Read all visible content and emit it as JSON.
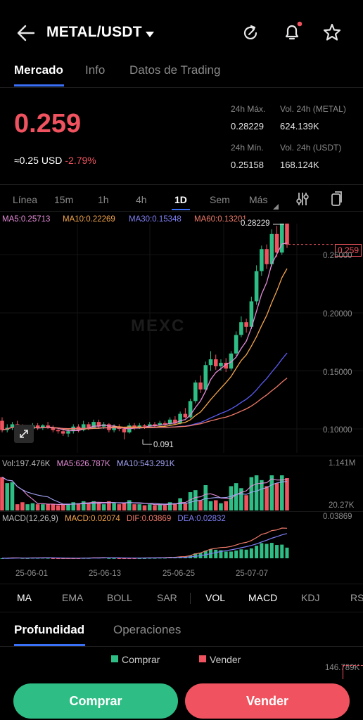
{
  "header": {
    "pair": "METAL/USDT"
  },
  "tabs": [
    "Mercado",
    "Info",
    "Datos de Trading"
  ],
  "price": {
    "last": "0.259",
    "usd": "≈0.25 USD",
    "change": "-2.79%"
  },
  "stats": {
    "high_label": "24h Máx.",
    "high": "0.28229",
    "low_label": "24h Mín.",
    "low": "0.25158",
    "vol_base_label": "Vol. 24h (METAL)",
    "vol_base": "624.139K",
    "vol_quote_label": "Vol. 24h (USDT)",
    "vol_quote": "168.124K"
  },
  "intervals": [
    "Línea",
    "15m",
    "1h",
    "4h",
    "1D",
    "Sem",
    "Más"
  ],
  "ma": {
    "ma5": "MA5:0.25713",
    "ma10": "MA10:0.22269",
    "ma30": "MA30:0.15348",
    "ma60": "MA60:0.13201"
  },
  "colors": {
    "up": "#2ebd85",
    "down": "#f0535f",
    "ma5": "#e58bd8",
    "ma10": "#f5a54a",
    "ma30": "#5b5bf5",
    "ma60": "#f07a6a",
    "accent": "#3a6ff7"
  },
  "chart": {
    "watermark": "MEXC",
    "high_marker": "0.28229",
    "low_marker": "0.091",
    "price_tag": "0.259",
    "y_labels": [
      "0.20000",
      "0.15000",
      "0.10000"
    ],
    "y_partial": "0.25000",
    "volume_label": "Vol:197.476K",
    "vol_ma5": "MA5:626.787K",
    "vol_ma10": "MA10:543.291K",
    "vol_max": "1.141M",
    "vol_min": "20.27K",
    "macd_label": "MACD(12,26,9)",
    "macd": "MACD:0.02074",
    "dif": "DIF:0.03869",
    "dea": "DEA:0.02832",
    "macd_max": "0.03869",
    "dates": [
      "25-06-01",
      "25-06-13",
      "25-06-25",
      "25-07-07"
    ]
  },
  "chart_data": {
    "type": "candlestick",
    "x_ticks": [
      "25-06-01",
      "25-06-13",
      "25-06-25",
      "25-07-07"
    ],
    "y_ticks": [
      0.2,
      0.15,
      0.1
    ],
    "candles": [
      {
        "o": 0.107,
        "c": 0.099,
        "h": 0.11,
        "l": 0.097
      },
      {
        "o": 0.099,
        "c": 0.101,
        "h": 0.104,
        "l": 0.097
      },
      {
        "o": 0.101,
        "c": 0.104,
        "h": 0.106,
        "l": 0.099
      },
      {
        "o": 0.104,
        "c": 0.102,
        "h": 0.107,
        "l": 0.1
      },
      {
        "o": 0.102,
        "c": 0.098,
        "h": 0.104,
        "l": 0.096
      },
      {
        "o": 0.098,
        "c": 0.1,
        "h": 0.103,
        "l": 0.097
      },
      {
        "o": 0.1,
        "c": 0.103,
        "h": 0.105,
        "l": 0.099
      },
      {
        "o": 0.103,
        "c": 0.101,
        "h": 0.105,
        "l": 0.099
      },
      {
        "o": 0.101,
        "c": 0.103,
        "h": 0.104,
        "l": 0.099
      },
      {
        "o": 0.103,
        "c": 0.101,
        "h": 0.106,
        "l": 0.1
      },
      {
        "o": 0.101,
        "c": 0.099,
        "h": 0.103,
        "l": 0.097
      },
      {
        "o": 0.099,
        "c": 0.098,
        "h": 0.101,
        "l": 0.096
      },
      {
        "o": 0.098,
        "c": 0.096,
        "h": 0.1,
        "l": 0.094
      },
      {
        "o": 0.096,
        "c": 0.098,
        "h": 0.1,
        "l": 0.093
      },
      {
        "o": 0.098,
        "c": 0.102,
        "h": 0.104,
        "l": 0.096
      },
      {
        "o": 0.102,
        "c": 0.099,
        "h": 0.104,
        "l": 0.097
      },
      {
        "o": 0.099,
        "c": 0.104,
        "h": 0.107,
        "l": 0.098
      },
      {
        "o": 0.104,
        "c": 0.101,
        "h": 0.106,
        "l": 0.099
      },
      {
        "o": 0.101,
        "c": 0.106,
        "h": 0.108,
        "l": 0.1
      },
      {
        "o": 0.106,
        "c": 0.102,
        "h": 0.108,
        "l": 0.1
      },
      {
        "o": 0.102,
        "c": 0.104,
        "h": 0.106,
        "l": 0.1
      },
      {
        "o": 0.104,
        "c": 0.099,
        "h": 0.105,
        "l": 0.097
      },
      {
        "o": 0.099,
        "c": 0.102,
        "h": 0.104,
        "l": 0.097
      },
      {
        "o": 0.102,
        "c": 0.1,
        "h": 0.104,
        "l": 0.098
      },
      {
        "o": 0.1,
        "c": 0.097,
        "h": 0.102,
        "l": 0.091
      },
      {
        "o": 0.097,
        "c": 0.103,
        "h": 0.105,
        "l": 0.096
      },
      {
        "o": 0.103,
        "c": 0.101,
        "h": 0.105,
        "l": 0.099
      },
      {
        "o": 0.101,
        "c": 0.103,
        "h": 0.105,
        "l": 0.1
      },
      {
        "o": 0.103,
        "c": 0.102,
        "h": 0.104,
        "l": 0.1
      },
      {
        "o": 0.102,
        "c": 0.104,
        "h": 0.106,
        "l": 0.101
      },
      {
        "o": 0.104,
        "c": 0.103,
        "h": 0.106,
        "l": 0.101
      },
      {
        "o": 0.103,
        "c": 0.105,
        "h": 0.107,
        "l": 0.102
      },
      {
        "o": 0.105,
        "c": 0.104,
        "h": 0.107,
        "l": 0.102
      },
      {
        "o": 0.104,
        "c": 0.108,
        "h": 0.11,
        "l": 0.103
      },
      {
        "o": 0.108,
        "c": 0.105,
        "h": 0.111,
        "l": 0.104
      },
      {
        "o": 0.105,
        "c": 0.113,
        "h": 0.115,
        "l": 0.104
      },
      {
        "o": 0.113,
        "c": 0.11,
        "h": 0.118,
        "l": 0.109
      },
      {
        "o": 0.11,
        "c": 0.124,
        "h": 0.126,
        "l": 0.109
      },
      {
        "o": 0.124,
        "c": 0.14,
        "h": 0.142,
        "l": 0.122
      },
      {
        "o": 0.14,
        "c": 0.134,
        "h": 0.146,
        "l": 0.131
      },
      {
        "o": 0.134,
        "c": 0.155,
        "h": 0.158,
        "l": 0.132
      },
      {
        "o": 0.155,
        "c": 0.16,
        "h": 0.167,
        "l": 0.15
      },
      {
        "o": 0.16,
        "c": 0.154,
        "h": 0.164,
        "l": 0.151
      },
      {
        "o": 0.154,
        "c": 0.157,
        "h": 0.16,
        "l": 0.15
      },
      {
        "o": 0.157,
        "c": 0.152,
        "h": 0.161,
        "l": 0.149
      },
      {
        "o": 0.152,
        "c": 0.165,
        "h": 0.167,
        "l": 0.15
      },
      {
        "o": 0.165,
        "c": 0.181,
        "h": 0.184,
        "l": 0.163
      },
      {
        "o": 0.181,
        "c": 0.192,
        "h": 0.197,
        "l": 0.179
      },
      {
        "o": 0.192,
        "c": 0.188,
        "h": 0.195,
        "l": 0.183
      },
      {
        "o": 0.188,
        "c": 0.21,
        "h": 0.214,
        "l": 0.186
      },
      {
        "o": 0.21,
        "c": 0.236,
        "h": 0.241,
        "l": 0.207
      },
      {
        "o": 0.236,
        "c": 0.255,
        "h": 0.258,
        "l": 0.232
      },
      {
        "o": 0.255,
        "c": 0.242,
        "h": 0.259,
        "l": 0.238
      },
      {
        "o": 0.242,
        "c": 0.268,
        "h": 0.272,
        "l": 0.24
      },
      {
        "o": 0.268,
        "c": 0.252,
        "h": 0.275,
        "l": 0.248
      },
      {
        "o": 0.252,
        "c": 0.28,
        "h": 0.282,
        "l": 0.25
      },
      {
        "o": 0.28,
        "c": 0.259,
        "h": 0.282,
        "l": 0.256
      }
    ]
  },
  "indicators": [
    "MA",
    "EMA",
    "BOLL",
    "SAR",
    "VOL",
    "MACD",
    "KDJ",
    "RS"
  ],
  "depth_tabs": [
    "Profundidad",
    "Operaciones"
  ],
  "depth": {
    "buy_legend": "Comprar",
    "sell_legend": "Vender",
    "depth_value": "146.789K"
  },
  "buttons": {
    "buy": "Comprar",
    "sell": "Vender"
  }
}
